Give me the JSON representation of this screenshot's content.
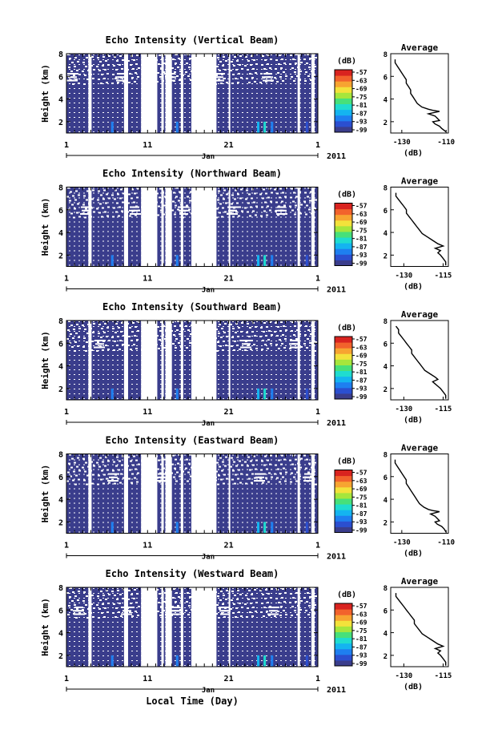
{
  "figure": {
    "xlabel": "Local Time (Day)",
    "month_label": "Jan",
    "year_label": "2011",
    "colorbar_unit": "(dB)",
    "colorbar_colors": [
      "#3a3d8c",
      "#2b4fd0",
      "#1e7ff0",
      "#14b4f0",
      "#1fdcd0",
      "#47e07a",
      "#a6e63c",
      "#f3e23b",
      "#f7a431",
      "#f2622c",
      "#d9231f"
    ]
  },
  "chart_data": [
    {
      "type": "heatmap",
      "title": "Echo Intensity (Vertical Beam)",
      "ylabel": "Height (km)",
      "xlim": [
        1,
        32
      ],
      "ylim": [
        1,
        8
      ],
      "x_ticks": [
        "1",
        "11",
        "21",
        "1"
      ],
      "y_ticks": [
        "2",
        "4",
        "6",
        "8"
      ],
      "colorbar_ticks": [
        "-57",
        "-63",
        "-69",
        "-75",
        "-81",
        "-87",
        "-93",
        "-99"
      ],
      "profile": {
        "title": "Average",
        "xlabel": "(dB)",
        "x_ticks": [
          "-130",
          "-110"
        ],
        "xlim": [
          -135,
          -109
        ],
        "y_ticks": [
          "2",
          "4",
          "6",
          "8"
        ],
        "ylim": [
          1,
          8
        ],
        "x": [
          -133,
          -133,
          -132,
          -131,
          -130,
          -129,
          -128,
          -128,
          -127,
          -126,
          -126,
          -125,
          -124,
          -123,
          -121,
          -118,
          -116,
          -113,
          -118,
          -115,
          -114,
          -113,
          -116,
          -115,
          -113,
          -112,
          -110
        ],
        "y": [
          7.5,
          7.2,
          6.9,
          6.6,
          6.3,
          6.0,
          5.7,
          5.4,
          5.1,
          4.8,
          4.5,
          4.2,
          3.9,
          3.6,
          3.3,
          3.1,
          3.0,
          2.9,
          2.7,
          2.5,
          2.3,
          2.1,
          2.0,
          1.8,
          1.6,
          1.4,
          1.1
        ]
      }
    },
    {
      "type": "heatmap",
      "title": "Echo Intensity (Northward Beam)",
      "ylabel": "Height (km)",
      "xlim": [
        1,
        32
      ],
      "ylim": [
        1,
        8
      ],
      "x_ticks": [
        "1",
        "11",
        "21",
        "1"
      ],
      "y_ticks": [
        "2",
        "4",
        "6",
        "8"
      ],
      "colorbar_ticks": [
        "-57",
        "-63",
        "-69",
        "-75",
        "-81",
        "-87",
        "-93",
        "-99"
      ],
      "profile": {
        "title": "Average",
        "xlabel": "(dB)",
        "x_ticks": [
          "-130",
          "-115"
        ],
        "xlim": [
          -135,
          -113
        ],
        "y_ticks": [
          "2",
          "4",
          "6",
          "8"
        ],
        "ylim": [
          1,
          8
        ],
        "x": [
          -133,
          -133,
          -132,
          -131,
          -130,
          -129,
          -129,
          -128,
          -127,
          -126,
          -125,
          -124,
          -123,
          -121,
          -119,
          -117,
          -115,
          -118,
          -116,
          -117,
          -116,
          -115,
          -114,
          -114
        ],
        "y": [
          7.5,
          7.2,
          6.9,
          6.6,
          6.3,
          6.0,
          5.7,
          5.4,
          5.1,
          4.8,
          4.5,
          4.2,
          3.9,
          3.6,
          3.3,
          3.0,
          2.8,
          2.6,
          2.4,
          2.2,
          2.0,
          1.7,
          1.4,
          1.1
        ]
      }
    },
    {
      "type": "heatmap",
      "title": "Echo Intensity (Southward Beam)",
      "ylabel": "Height (km)",
      "xlim": [
        1,
        32
      ],
      "ylim": [
        1,
        8
      ],
      "x_ticks": [
        "1",
        "11",
        "21",
        "1"
      ],
      "y_ticks": [
        "2",
        "4",
        "6",
        "8"
      ],
      "colorbar_ticks": [
        "-57",
        "-63",
        "-69",
        "-75",
        "-81",
        "-87",
        "-93",
        "-99"
      ],
      "profile": {
        "title": "Average",
        "xlabel": "(dB)",
        "x_ticks": [
          "-130",
          "-115"
        ],
        "xlim": [
          -135,
          -113
        ],
        "y_ticks": [
          "2",
          "4",
          "6",
          "8"
        ],
        "ylim": [
          1,
          8
        ],
        "x": [
          -133,
          -132,
          -132,
          -131,
          -130,
          -129,
          -128,
          -127,
          -127,
          -126,
          -125,
          -124,
          -123,
          -122,
          -120,
          -118,
          -117,
          -119,
          -118,
          -117,
          -116,
          -115,
          -114,
          -114
        ],
        "y": [
          7.5,
          7.2,
          6.9,
          6.6,
          6.3,
          6.0,
          5.7,
          5.4,
          5.1,
          4.8,
          4.5,
          4.2,
          3.9,
          3.6,
          3.3,
          3.0,
          2.8,
          2.6,
          2.4,
          2.2,
          2.0,
          1.7,
          1.4,
          1.1
        ]
      }
    },
    {
      "type": "heatmap",
      "title": "Echo Intensity (Eastward Beam)",
      "ylabel": "Height (km)",
      "xlim": [
        1,
        32
      ],
      "ylim": [
        1,
        8
      ],
      "x_ticks": [
        "1",
        "11",
        "21",
        "1"
      ],
      "y_ticks": [
        "2",
        "4",
        "6",
        "8"
      ],
      "colorbar_ticks": [
        "-57",
        "-63",
        "-69",
        "-75",
        "-81",
        "-87",
        "-93",
        "-99"
      ],
      "profile": {
        "title": "Average",
        "xlabel": "(dB)",
        "x_ticks": [
          "-130",
          "-110"
        ],
        "xlim": [
          -135,
          -109
        ],
        "y_ticks": [
          "2",
          "4",
          "6",
          "8"
        ],
        "ylim": [
          1,
          8
        ],
        "x": [
          -133,
          -133,
          -132,
          -131,
          -130,
          -129,
          -128,
          -128,
          -127,
          -126,
          -125,
          -124,
          -123,
          -122,
          -120,
          -118,
          -116,
          -113,
          -117,
          -115,
          -114,
          -113,
          -115,
          -114,
          -112,
          -111,
          -110
        ],
        "y": [
          7.5,
          7.2,
          6.9,
          6.6,
          6.3,
          6.0,
          5.7,
          5.4,
          5.1,
          4.8,
          4.5,
          4.2,
          3.9,
          3.6,
          3.3,
          3.1,
          3.0,
          2.9,
          2.7,
          2.5,
          2.3,
          2.1,
          2.0,
          1.8,
          1.6,
          1.4,
          1.1
        ]
      }
    },
    {
      "type": "heatmap",
      "title": "Echo Intensity (Westward Beam)",
      "ylabel": "Height (km)",
      "xlim": [
        1,
        32
      ],
      "ylim": [
        1,
        8
      ],
      "x_ticks": [
        "1",
        "11",
        "21",
        "1"
      ],
      "y_ticks": [
        "2",
        "4",
        "6",
        "8"
      ],
      "colorbar_ticks": [
        "-57",
        "-63",
        "-69",
        "-75",
        "-81",
        "-87",
        "-93",
        "-99"
      ],
      "profile": {
        "title": "Average",
        "xlabel": "(dB)",
        "x_ticks": [
          "-130",
          "-115"
        ],
        "xlim": [
          -135,
          -113
        ],
        "y_ticks": [
          "2",
          "4",
          "6",
          "8"
        ],
        "ylim": [
          1,
          8
        ],
        "x": [
          -133,
          -133,
          -132,
          -131,
          -130,
          -129,
          -128,
          -127,
          -126,
          -126,
          -125,
          -124,
          -123,
          -121,
          -119,
          -117,
          -115,
          -118,
          -116,
          -117,
          -116,
          -115,
          -114,
          -114
        ],
        "y": [
          7.5,
          7.2,
          6.9,
          6.6,
          6.3,
          6.0,
          5.7,
          5.4,
          5.1,
          4.8,
          4.5,
          4.2,
          3.9,
          3.6,
          3.3,
          3.0,
          2.8,
          2.6,
          2.4,
          2.2,
          2.0,
          1.7,
          1.4,
          1.1
        ]
      }
    }
  ]
}
